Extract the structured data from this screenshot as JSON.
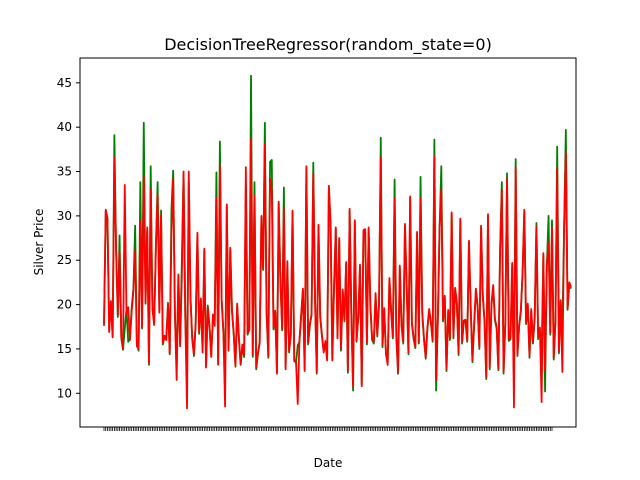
{
  "chart_data": {
    "type": "line",
    "title": "DecisionTreeRegressor(random_state=0)",
    "xlabel": "Date",
    "ylabel": "Silver Price",
    "ylim": [
      6.2,
      47.8
    ],
    "yticks": [
      10,
      15,
      20,
      25,
      30,
      35,
      40,
      45
    ],
    "grid": false,
    "legend": "none",
    "x_points": 260,
    "series": [
      {
        "color": "#008000",
        "values": [
          17.8,
          30.5,
          29.6,
          17.1,
          20.2,
          16.4,
          39.1,
          26.0,
          18.6,
          27.8,
          16.2,
          14.9,
          17.3,
          19.5,
          15.8,
          16.2,
          19.7,
          21.8,
          28.9,
          15.6,
          14.8,
          33.8,
          17.3,
          40.5,
          20.1,
          28.4,
          13.2,
          35.6,
          19.7,
          17.9,
          26.4,
          33.8,
          19.3,
          30.6,
          15.5,
          16.3,
          16.1,
          20.2,
          14.4,
          30.8,
          35.1,
          19.0,
          13.1,
          23.2,
          15.5,
          24.9,
          34.8,
          18.6,
          11.9,
          33.8,
          20.7,
          16.3,
          14.2,
          18.0,
          27.9,
          16.7,
          20.5,
          14.9,
          26.1,
          13.0,
          19.9,
          17.6,
          14.3,
          18.7,
          18.2,
          34.9,
          13.4,
          38.4,
          20.5,
          16.9,
          12.2,
          31.1,
          14.8,
          26.2,
          19.4,
          16.6,
          13.0,
          19.9,
          16.3,
          13.2,
          15.3,
          14.1,
          33.4,
          16.6,
          17.3,
          45.8,
          14.1,
          33.8,
          12.7,
          14.4,
          15.8,
          29.8,
          23.9,
          40.5,
          19.0,
          14.0,
          36.1,
          36.3,
          17.2,
          19.1,
          12.4,
          31.4,
          22.5,
          17.1,
          33.2,
          12.9,
          24.7,
          14.6,
          16.7,
          30.4,
          13.8,
          13.4,
          15.4,
          15.8,
          18.7,
          21.6,
          12.7,
          35.4,
          15.5,
          17.6,
          19.0,
          36.0,
          20.4,
          12.2,
          28.8,
          18.5,
          16.4,
          14.8,
          15.7,
          13.9,
          33.2,
          29.0,
          13.9,
          21.9,
          28.5,
          16.4,
          27.3,
          14.8,
          21.5,
          18.1,
          24.6,
          12.3,
          30.6,
          18.8,
          10.3,
          29.3,
          15.8,
          18.5,
          24.3,
          11.0,
          28.2,
          28.3,
          15.5,
          28.5,
          19.7,
          16.0,
          15.6,
          21.1,
          16.4,
          20.0,
          38.8,
          15.2,
          19.4,
          14.4,
          13.4,
          22.8,
          19.1,
          16.2,
          34.1,
          16.3,
          12.2,
          24.2,
          17.6,
          15.6,
          28.9,
          21.9,
          14.4,
          32.0,
          17.8,
          16.1,
          15.1,
          28.0,
          15.6,
          34.4,
          18.9,
          16.0,
          13.9,
          17.3,
          19.3,
          17.9,
          15.8,
          38.6,
          10.3,
          18.2,
          28.5,
          35.6,
          18.1,
          20.8,
          12.5,
          19.2,
          16.0,
          30.2,
          16.2,
          21.7,
          20.0,
          14.3,
          29.5,
          15.6,
          18.0,
          18.1,
          15.8,
          27.0,
          19.6,
          13.5,
          17.7,
          21.6,
          19.7,
          15.0,
          28.7,
          20.9,
          18.0,
          11.6,
          30.0,
          12.7,
          19.9,
          22.0,
          18.2,
          17.3,
          12.6,
          26.2,
          33.8,
          12.2,
          17.8,
          34.8,
          15.9,
          16.1,
          24.5,
          12.4,
          36.4,
          14.2,
          17.5,
          19.2,
          23.5,
          30.5,
          17.8,
          19.9,
          14.0,
          19.3,
          15.6,
          18.4,
          29.2,
          16.1,
          17.2,
          14.4,
          25.6,
          10.2,
          24.3,
          30.0,
          16.6,
          29.5,
          13.8,
          18.0,
          37.8,
          14.5,
          20.3,
          17.4,
          28.6,
          39.7,
          19.4,
          22.3,
          21.8
        ]
      },
      {
        "color": "#ff0000",
        "values": [
          17.6,
          30.7,
          29.8,
          16.9,
          20.4,
          16.3,
          36.6,
          26.2,
          18.8,
          26.0,
          16.4,
          15.0,
          33.5,
          18.8,
          19.7,
          16.0,
          19.2,
          21.5,
          26.2,
          15.3,
          15.0,
          29.4,
          17.4,
          34.5,
          20.3,
          28.7,
          13.4,
          33.0,
          19.5,
          17.7,
          26.6,
          32.4,
          19.1,
          30.1,
          15.7,
          16.5,
          16.0,
          20.0,
          14.5,
          28.1,
          34.2,
          18.8,
          11.5,
          23.4,
          15.3,
          23.1,
          35.0,
          18.4,
          8.3,
          35.0,
          20.9,
          16.0,
          14.4,
          17.8,
          28.1,
          16.9,
          20.7,
          14.6,
          26.3,
          12.9,
          19.7,
          17.4,
          14.1,
          18.9,
          17.6,
          32.0,
          13.2,
          35.7,
          20.7,
          17.1,
          8.5,
          31.3,
          14.9,
          26.4,
          19.2,
          16.8,
          13.1,
          20.1,
          16.1,
          13.3,
          15.5,
          14.3,
          35.5,
          16.8,
          17.1,
          38.7,
          14.3,
          32.3,
          12.9,
          14.6,
          15.6,
          30.0,
          24.1,
          38.0,
          19.2,
          14.2,
          34.2,
          33.0,
          17.4,
          19.3,
          12.2,
          31.6,
          22.7,
          17.3,
          30.8,
          12.7,
          24.9,
          14.8,
          16.5,
          30.6,
          13.6,
          13.6,
          8.8,
          16.0,
          18.9,
          21.8,
          12.5,
          35.6,
          15.7,
          17.8,
          18.8,
          34.8,
          20.6,
          12.4,
          29.0,
          18.7,
          16.6,
          14.6,
          15.9,
          13.7,
          33.4,
          29.2,
          13.7,
          22.1,
          28.7,
          16.2,
          27.5,
          15.0,
          21.7,
          18.3,
          24.8,
          12.5,
          30.8,
          19.0,
          10.8,
          29.5,
          16.0,
          18.7,
          24.5,
          10.8,
          28.4,
          28.5,
          15.7,
          28.7,
          19.9,
          16.2,
          15.8,
          21.3,
          16.6,
          20.2,
          36.6,
          15.4,
          19.6,
          14.6,
          13.2,
          23.0,
          19.3,
          16.4,
          32.0,
          16.5,
          12.4,
          24.4,
          17.8,
          15.8,
          29.1,
          22.1,
          14.6,
          32.2,
          18.0,
          16.3,
          15.3,
          28.2,
          15.8,
          32.0,
          19.1,
          16.2,
          14.1,
          17.5,
          19.5,
          18.1,
          16.0,
          36.7,
          11.5,
          18.4,
          28.7,
          33.0,
          18.3,
          21.0,
          12.7,
          19.4,
          16.2,
          30.4,
          16.4,
          21.9,
          20.2,
          14.5,
          29.7,
          15.8,
          18.2,
          18.3,
          16.0,
          27.2,
          19.8,
          13.7,
          17.9,
          21.8,
          19.9,
          15.2,
          28.9,
          21.1,
          18.2,
          11.8,
          30.2,
          12.9,
          20.1,
          22.2,
          18.4,
          17.5,
          12.8,
          26.4,
          33.0,
          12.4,
          18.0,
          34.2,
          16.1,
          16.3,
          24.7,
          8.4,
          35.5,
          14.4,
          17.7,
          19.4,
          23.7,
          30.7,
          18.0,
          20.1,
          14.2,
          19.5,
          15.8,
          18.6,
          28.9,
          16.3,
          17.4,
          9.0,
          25.8,
          12.6,
          24.5,
          27.0,
          16.8,
          28.6,
          14.0,
          18.2,
          35.4,
          14.7,
          20.5,
          12.4,
          28.8,
          37.2,
          19.6,
          22.5,
          22.0
        ]
      }
    ]
  }
}
